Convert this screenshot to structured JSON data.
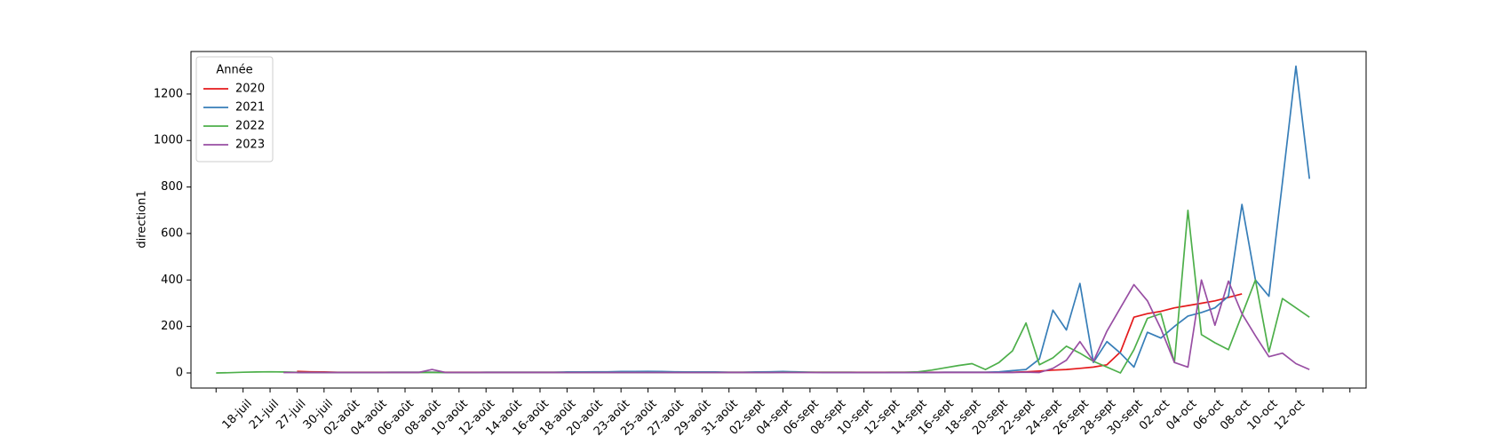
{
  "chart_data": {
    "type": "line",
    "ylabel": "direction1",
    "legend_title": "Année",
    "legend": "upper left",
    "categories": [
      null,
      null,
      "18-juil",
      null,
      "21-juil",
      null,
      "27-juil",
      null,
      "30-juil",
      null,
      "02-août",
      null,
      "04-août",
      null,
      "06-août",
      null,
      "08-août",
      null,
      "10-août",
      null,
      "12-août",
      null,
      "14-août",
      null,
      "16-août",
      null,
      "18-août",
      null,
      "20-août",
      null,
      "23-août",
      null,
      "25-août",
      null,
      "27-août",
      null,
      "29-août",
      null,
      "31-août",
      null,
      "02-sept",
      null,
      "04-sept",
      null,
      "06-sept",
      null,
      "08-sept",
      null,
      "10-sept",
      null,
      "12-sept",
      null,
      "14-sept",
      null,
      "16-sept",
      null,
      "18-sept",
      null,
      "20-sept",
      null,
      "22-sept",
      null,
      "24-sept",
      null,
      "26-sept",
      null,
      "28-sept",
      null,
      "30-sept",
      null,
      "02-oct",
      null,
      "04-oct",
      null,
      "06-oct",
      null,
      "08-oct",
      null,
      "10-oct",
      null,
      "12-oct",
      null,
      null,
      null,
      null
    ],
    "series": [
      {
        "name": "2020",
        "color": "#e41a1c",
        "values": [
          null,
          null,
          null,
          null,
          null,
          null,
          7,
          5,
          4,
          3,
          3,
          3,
          3,
          3,
          3,
          3,
          3,
          3,
          3,
          3,
          3,
          3,
          3,
          3,
          3,
          3,
          3,
          3,
          3,
          3,
          3,
          3,
          3,
          3,
          3,
          3,
          3,
          3,
          3,
          3,
          3,
          3,
          3,
          3,
          3,
          3,
          3,
          3,
          3,
          3,
          3,
          3,
          3,
          3,
          3,
          3,
          3,
          3,
          3,
          3,
          5,
          8,
          12,
          15,
          20,
          25,
          35,
          90,
          240,
          255,
          265,
          280,
          290,
          300,
          310,
          325,
          340,
          null,
          null,
          null,
          null,
          null,
          null,
          null,
          null
        ]
      },
      {
        "name": "2021",
        "color": "#377eb8",
        "values": [
          null,
          null,
          null,
          null,
          null,
          null,
          2,
          2,
          2,
          2,
          2,
          2,
          2,
          3,
          3,
          3,
          3,
          2,
          2,
          2,
          3,
          3,
          3,
          3,
          3,
          3,
          4,
          4,
          5,
          5,
          6,
          6,
          7,
          6,
          5,
          4,
          4,
          4,
          3,
          3,
          4,
          5,
          6,
          5,
          3,
          2,
          2,
          2,
          2,
          2,
          2,
          2,
          2,
          2,
          3,
          3,
          3,
          3,
          5,
          10,
          15,
          60,
          270,
          185,
          385,
          45,
          135,
          85,
          25,
          175,
          150,
          200,
          245,
          260,
          280,
          330,
          725,
          400,
          330,
          820,
          1320,
          835,
          null,
          null,
          null
        ]
      },
      {
        "name": "2022",
        "color": "#4daf4a",
        "values": [
          0,
          1,
          3,
          4,
          5,
          4,
          3,
          2,
          2,
          2,
          2,
          2,
          2,
          2,
          2,
          2,
          2,
          2,
          1,
          1,
          2,
          2,
          2,
          2,
          2,
          2,
          2,
          2,
          2,
          2,
          2,
          2,
          2,
          2,
          2,
          2,
          2,
          2,
          2,
          2,
          2,
          2,
          3,
          3,
          3,
          3,
          3,
          3,
          2,
          2,
          3,
          3,
          5,
          12,
          22,
          32,
          40,
          15,
          45,
          95,
          215,
          35,
          65,
          115,
          85,
          50,
          25,
          0,
          100,
          235,
          255,
          45,
          700,
          165,
          130,
          100,
          250,
          400,
          90,
          320,
          280,
          240,
          null,
          null,
          null
        ]
      },
      {
        "name": "2023",
        "color": "#984ea3",
        "values": [
          null,
          null,
          null,
          null,
          null,
          2,
          2,
          2,
          2,
          2,
          2,
          2,
          2,
          2,
          2,
          2,
          15,
          2,
          2,
          2,
          2,
          2,
          2,
          2,
          2,
          2,
          2,
          2,
          2,
          2,
          2,
          2,
          2,
          2,
          2,
          2,
          2,
          2,
          2,
          2,
          2,
          2,
          2,
          2,
          2,
          2,
          2,
          2,
          2,
          2,
          2,
          2,
          2,
          2,
          2,
          2,
          2,
          2,
          2,
          2,
          3,
          2,
          20,
          55,
          135,
          50,
          180,
          280,
          380,
          310,
          190,
          45,
          25,
          400,
          205,
          395,
          255,
          160,
          70,
          85,
          40,
          15,
          null,
          null,
          null
        ]
      }
    ],
    "ylim": [
      -65,
      1383
    ],
    "yticks": [
      0,
      200,
      400,
      600,
      800,
      1000,
      1200
    ]
  }
}
